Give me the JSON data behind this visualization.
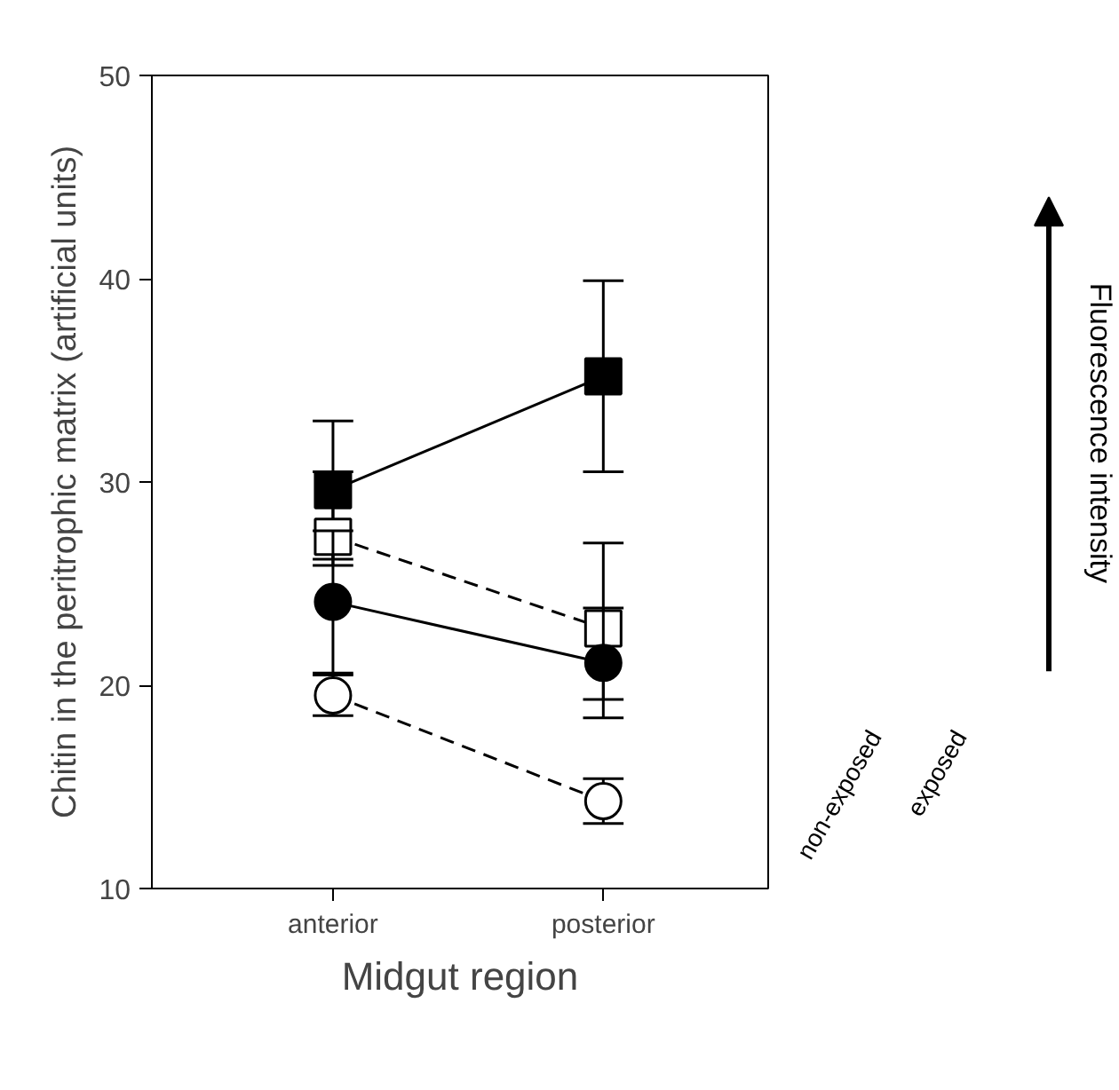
{
  "chart_data": {
    "type": "line",
    "xlabel": "Midgut region",
    "ylabel": "Chitin in the peritrophic matrix (artificial units)",
    "categories": [
      "anterior",
      "posterior"
    ],
    "series": [
      {
        "color": "#000000",
        "marker": "square",
        "line_style": "solid",
        "values": [
          29.6,
          35.2
        ],
        "errors": [
          3.4,
          4.7
        ]
      },
      {
        "color": "#000000",
        "marker": "square",
        "line_style": "dashed",
        "values": [
          27.3,
          22.8
        ],
        "errors": [
          [
            25.9,
            30.5
          ],
          [
            19.3,
            27.0
          ]
        ]
      },
      {
        "color": "#000000",
        "marker": "circle",
        "line_style": "solid",
        "values": [
          24.1,
          21.1
        ],
        "errors": [
          3.5,
          2.7
        ]
      },
      {
        "color": "#000000",
        "marker": "circle",
        "line_style": "dashed",
        "values": [
          19.5,
          14.3
        ],
        "errors": [
          1.0,
          1.1
        ]
      }
    ],
    "ylim": [
      10,
      50
    ],
    "yticks": [
      10,
      20,
      30,
      40,
      50
    ],
    "grid": false,
    "annotations": [
      "non-exposed",
      "exposed",
      "Fluorescence intensity"
    ]
  }
}
